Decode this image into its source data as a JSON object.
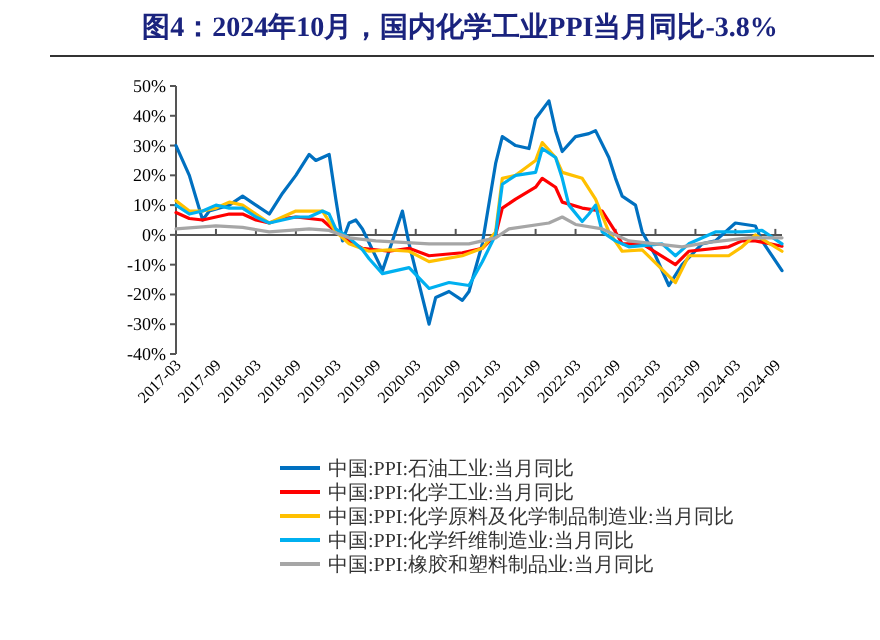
{
  "chart_data": {
    "type": "line",
    "title": "图4：2024年10月，国内化学工业PPI当月同比-3.8%",
    "xlim": [
      "2017-03",
      "2024-10"
    ],
    "xticks": [
      {
        "value": "2017-03",
        "label": "2017-03"
      },
      {
        "value": "2017-09",
        "label": "2017-09"
      },
      {
        "value": "2018-03",
        "label": "2018-03"
      },
      {
        "value": "2018-09",
        "label": "2018-09"
      },
      {
        "value": "2019-03",
        "label": "2019-03"
      },
      {
        "value": "2019-09",
        "label": "2019-09"
      },
      {
        "value": "2020-03",
        "label": "2020-03"
      },
      {
        "value": "2020-09",
        "label": "2020-09"
      },
      {
        "value": "2021-03",
        "label": "2021-03"
      },
      {
        "value": "2021-09",
        "label": "2021-09"
      },
      {
        "value": "2022-03",
        "label": "2022-03"
      },
      {
        "value": "2022-09",
        "label": "2022-09"
      },
      {
        "value": "2023-03",
        "label": "2023-03"
      },
      {
        "value": "2023-09",
        "label": "2023-09"
      },
      {
        "value": "2024-03",
        "label": "2024-03"
      },
      {
        "value": "2024-09",
        "label": "2024-09"
      }
    ],
    "ylim": [
      -40,
      50
    ],
    "yticks": [
      {
        "value": -40,
        "label": "-40%"
      },
      {
        "value": -30,
        "label": "-30%"
      },
      {
        "value": -20,
        "label": "-20%"
      },
      {
        "value": -10,
        "label": "-10%"
      },
      {
        "value": 0,
        "label": "0%"
      },
      {
        "value": 10,
        "label": "10%"
      },
      {
        "value": 20,
        "label": "20%"
      },
      {
        "value": 30,
        "label": "30%"
      },
      {
        "value": 40,
        "label": "40%"
      },
      {
        "value": 50,
        "label": "50%"
      }
    ],
    "legend": "bottom",
    "series": [
      {
        "name": "中国:PPI:石油工业:当月同比",
        "color": "#0070c0",
        "x": [
          "2017-03",
          "2017-05",
          "2017-07",
          "2017-08",
          "2017-11",
          "2018-01",
          "2018-03",
          "2018-05",
          "2018-07",
          "2018-09",
          "2018-11",
          "2018-12",
          "2019-02",
          "2019-03",
          "2019-04",
          "2019-05",
          "2019-06",
          "2019-07",
          "2019-10",
          "2020-01",
          "2020-02",
          "2020-05",
          "2020-06",
          "2020-08",
          "2020-10",
          "2020-11",
          "2021-01",
          "2021-03",
          "2021-04",
          "2021-06",
          "2021-08",
          "2021-09",
          "2021-11",
          "2021-12",
          "2022-01",
          "2022-03",
          "2022-05",
          "2022-06",
          "2022-08",
          "2022-09",
          "2022-10",
          "2022-12",
          "2023-01",
          "2023-03",
          "2023-05",
          "2023-07",
          "2023-10",
          "2023-12",
          "2024-03",
          "2024-06",
          "2024-07",
          "2024-10"
        ],
        "values": [
          30,
          20,
          5,
          8,
          10,
          13,
          10,
          7,
          14,
          20,
          27,
          25,
          27,
          12,
          -2,
          4,
          5,
          2,
          -12,
          8,
          -3,
          -30,
          -21,
          -19,
          -22,
          -19,
          -3,
          24,
          33,
          30,
          29,
          39,
          45,
          35,
          28,
          33,
          34,
          35,
          26,
          19,
          13,
          10,
          1,
          -7,
          -17,
          -10,
          -3,
          -2,
          4,
          3,
          -2,
          -12
        ]
      },
      {
        "name": "中国:PPI:化学工业:当月同比",
        "color": "#ff0000",
        "x": [
          "2017-03",
          "2017-05",
          "2017-07",
          "2017-09",
          "2017-11",
          "2018-01",
          "2018-03",
          "2018-05",
          "2018-07",
          "2018-09",
          "2018-11",
          "2019-01",
          "2019-03",
          "2019-05",
          "2019-07",
          "2019-11",
          "2020-02",
          "2020-05",
          "2020-10",
          "2021-01",
          "2021-03",
          "2021-04",
          "2021-06",
          "2021-09",
          "2021-10",
          "2021-12",
          "2022-01",
          "2022-04",
          "2022-07",
          "2022-09",
          "2022-10",
          "2023-01",
          "2023-06",
          "2023-08",
          "2024-02",
          "2024-04",
          "2024-06",
          "2024-10"
        ],
        "values": [
          7.5,
          5.5,
          5,
          6,
          7,
          7,
          5,
          4,
          5.5,
          6,
          5.5,
          5,
          1,
          -2,
          -4.5,
          -5.5,
          -4.5,
          -7,
          -6,
          -4.5,
          0,
          9,
          12,
          16,
          19,
          16,
          11,
          9,
          8,
          1,
          -3,
          -3,
          -10,
          -5.5,
          -4,
          -2,
          -2,
          -3.8
        ]
      },
      {
        "name": "中国:PPI:化学原料及化学制品制造业:当月同比",
        "color": "#ffc000",
        "x": [
          "2017-03",
          "2017-05",
          "2017-07",
          "2017-09",
          "2017-11",
          "2018-01",
          "2018-03",
          "2018-05",
          "2018-07",
          "2018-09",
          "2018-11",
          "2019-01",
          "2019-03",
          "2019-05",
          "2019-08",
          "2019-11",
          "2020-02",
          "2020-05",
          "2020-10",
          "2021-01",
          "2021-03",
          "2021-04",
          "2021-06",
          "2021-09",
          "2021-10",
          "2021-12",
          "2022-01",
          "2022-04",
          "2022-06",
          "2022-08",
          "2022-10",
          "2023-01",
          "2023-06",
          "2023-08",
          "2024-02",
          "2024-04",
          "2024-06",
          "2024-10"
        ],
        "values": [
          11.5,
          8,
          8,
          9,
          11,
          10,
          7,
          4,
          6,
          8,
          8,
          8,
          1,
          -3,
          -5.5,
          -5,
          -5.5,
          -9,
          -7,
          -4.5,
          1,
          19,
          20,
          25,
          31,
          26,
          21,
          19,
          12,
          1,
          -5.5,
          -5,
          -16,
          -7,
          -7,
          -4,
          0,
          -5.5
        ]
      },
      {
        "name": "中国:PPI:化学纤维制造业:当月同比",
        "color": "#00b0f0",
        "x": [
          "2017-03",
          "2017-05",
          "2017-07",
          "2017-09",
          "2017-11",
          "2018-01",
          "2018-03",
          "2018-05",
          "2018-07",
          "2018-09",
          "2018-11",
          "2019-01",
          "2019-02",
          "2019-03",
          "2019-05",
          "2019-07",
          "2019-08",
          "2019-10",
          "2020-02",
          "2020-05",
          "2020-08",
          "2020-11",
          "2021-01",
          "2021-03",
          "2021-04",
          "2021-06",
          "2021-09",
          "2021-10",
          "2021-12",
          "2022-01",
          "2022-02",
          "2022-04",
          "2022-05",
          "2022-06",
          "2022-07",
          "2022-09",
          "2022-11",
          "2023-04",
          "2023-06",
          "2023-08",
          "2023-12",
          "2024-04",
          "2024-07",
          "2024-10"
        ],
        "values": [
          10,
          7,
          8,
          10,
          9,
          9,
          6,
          4,
          5,
          6,
          6,
          8,
          7,
          2,
          -1,
          -5,
          -8,
          -13,
          -11,
          -18,
          -16,
          -17,
          -9,
          0,
          17,
          20,
          21,
          29,
          26,
          19,
          10,
          4.5,
          7,
          10,
          1,
          -2,
          -4,
          -3,
          -7,
          -3,
          1,
          1,
          1.5,
          -3
        ]
      },
      {
        "name": "中国:PPI:橡胶和塑料制品业:当月同比",
        "color": "#a6a6a6",
        "x": [
          "2017-03",
          "2017-09",
          "2018-01",
          "2018-05",
          "2018-11",
          "2019-02",
          "2019-05",
          "2019-09",
          "2020-05",
          "2020-11",
          "2021-03",
          "2021-05",
          "2021-11",
          "2022-01",
          "2022-03",
          "2022-07",
          "2022-11",
          "2023-03",
          "2023-07",
          "2023-11",
          "2024-05",
          "2024-10"
        ],
        "values": [
          2,
          3,
          2.5,
          1,
          2,
          1.5,
          -1,
          -2,
          -3,
          -3,
          -1,
          2,
          4,
          6,
          3.5,
          2,
          -2,
          -3,
          -4,
          -2.5,
          -1,
          -1
        ]
      }
    ]
  }
}
